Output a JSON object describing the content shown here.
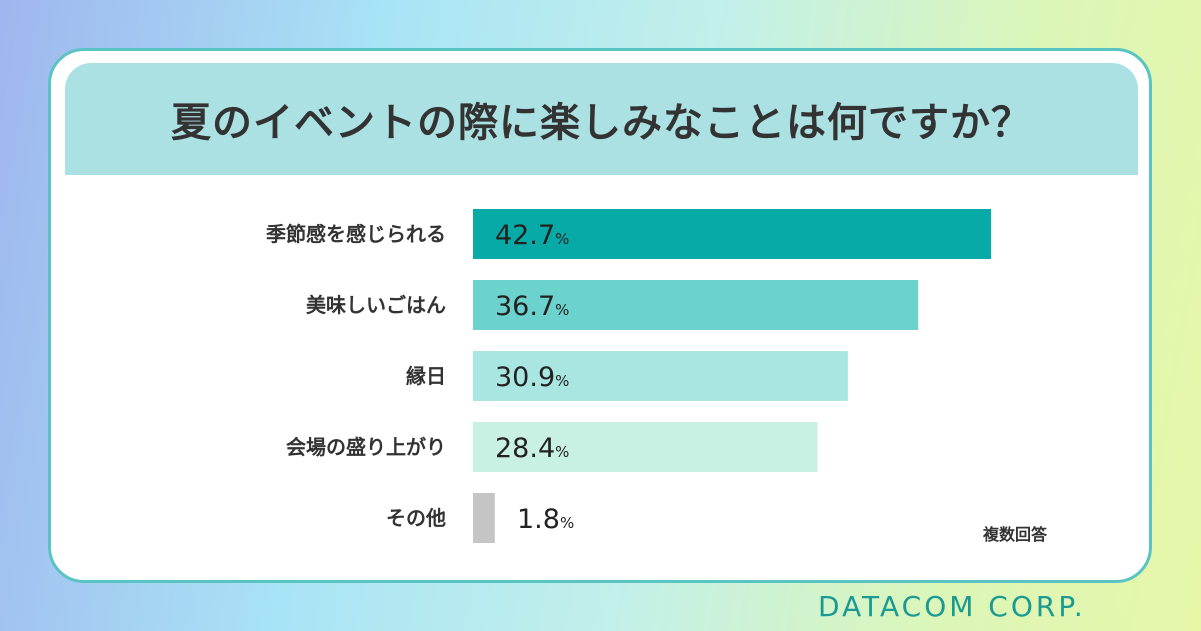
{
  "chart_data": {
    "type": "bar",
    "orientation": "horizontal",
    "title": "夏のイベントの際に楽しみなことは何ですか？",
    "categories": [
      "季節感を感じられる",
      "美味しいごはん",
      "縁日",
      "会場の盛り上がり",
      "その他"
    ],
    "values": [
      42.7,
      36.7,
      30.9,
      28.4,
      1.8
    ],
    "value_labels": [
      "42.7",
      "36.7",
      "30.9",
      "28.4",
      "1.8"
    ],
    "unit": "%",
    "colors": [
      "#07aaa6",
      "#6bd2cd",
      "#a9e6e2",
      "#c8f1e3",
      "#c5c5c5"
    ],
    "xlim": [
      0,
      45
    ],
    "note": "複数回答",
    "legend": "none",
    "grid": false
  },
  "footer": {
    "brand": "DATACOM CORP."
  }
}
